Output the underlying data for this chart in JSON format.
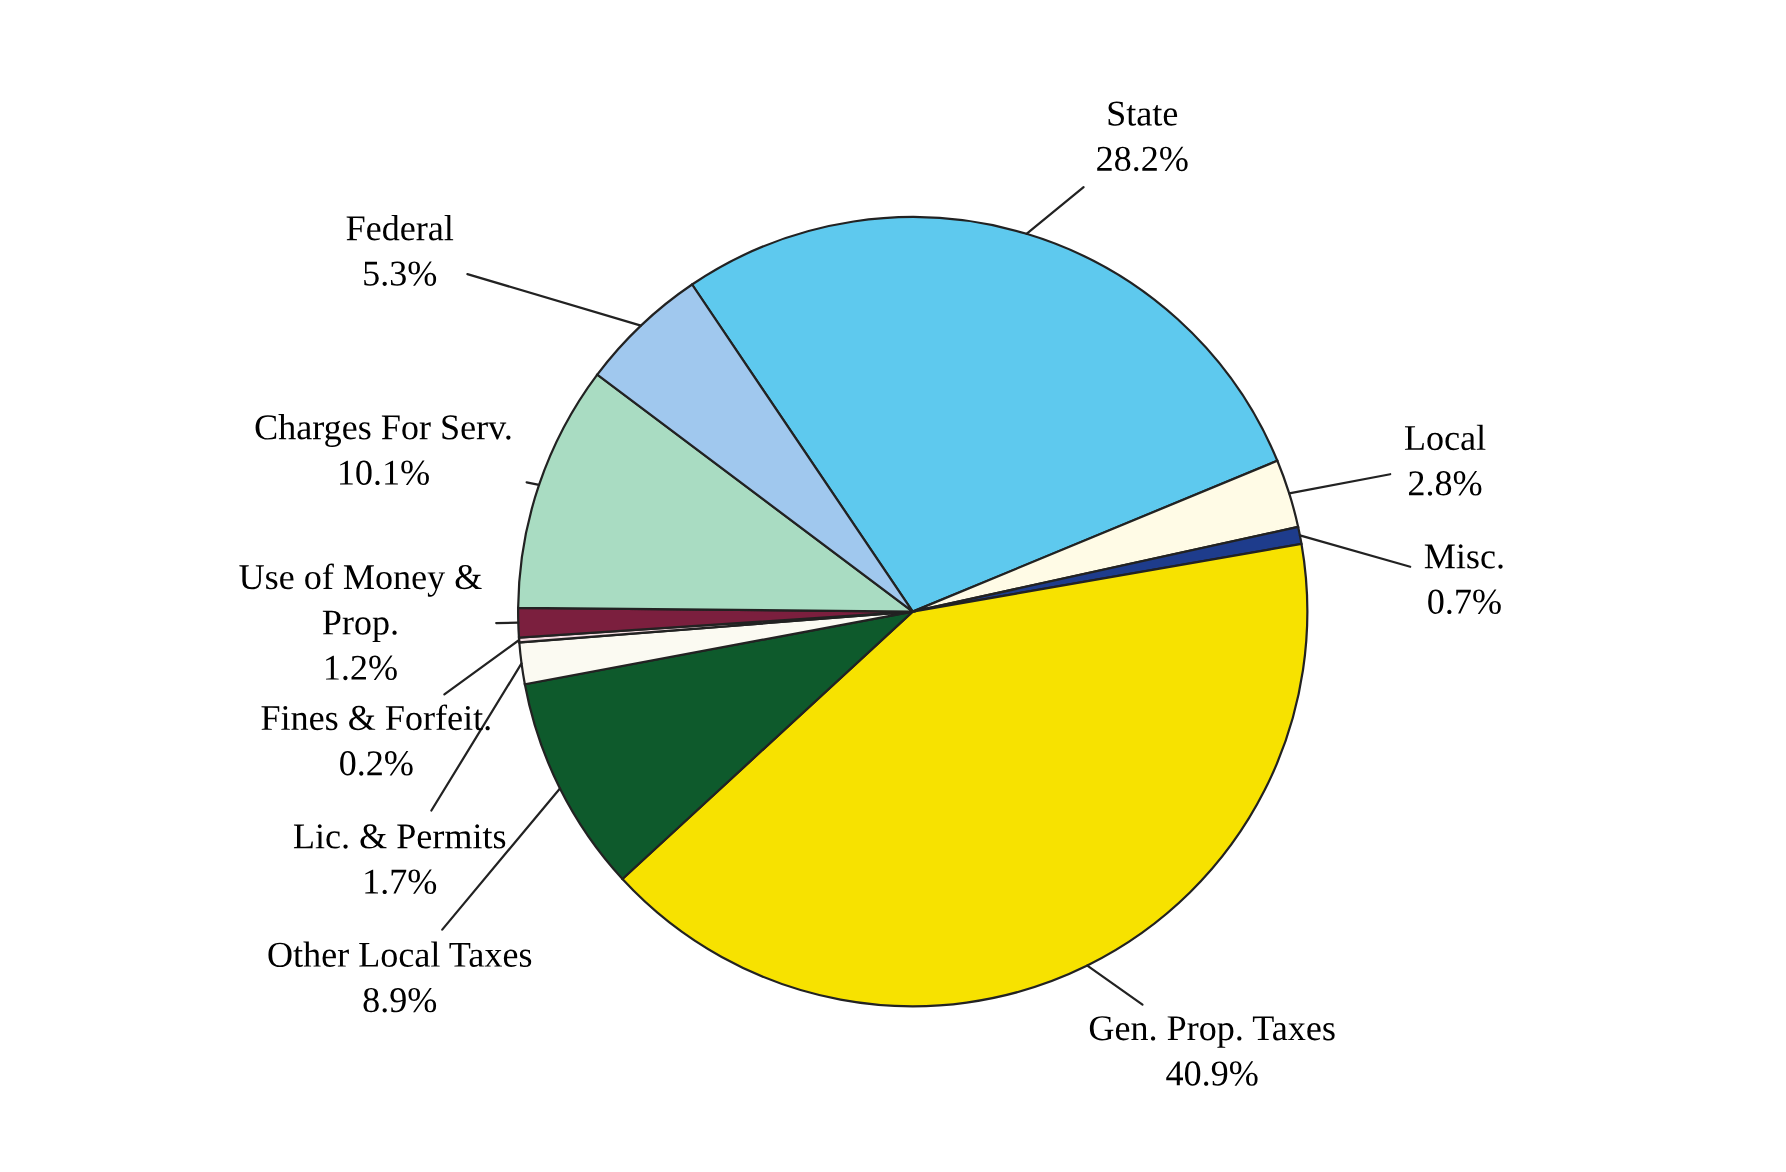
{
  "chart_data": {
    "type": "pie",
    "categories": [
      "State",
      "Local",
      "Misc.",
      "Gen. Prop. Taxes",
      "Other Local Taxes",
      "Lic. & Permits",
      "Fines & Forfeit.",
      "Use of Money &\nProp.",
      "Charges For Serv.",
      "Federal"
    ],
    "values": [
      28.2,
      2.8,
      0.7,
      40.9,
      8.9,
      1.7,
      0.2,
      1.2,
      10.1,
      5.3
    ],
    "value_labels": [
      "28.2%",
      "2.8%",
      "0.7%",
      "40.9%",
      "8.9%",
      "1.7%",
      "0.2%",
      "1.2%",
      "10.1%",
      "5.3%"
    ],
    "colors": [
      "#5ec9ee",
      "#fffbe6",
      "#1e3c8c",
      "#f7e200",
      "#0e5a2c",
      "#fbfaf2",
      "#f6dde2",
      "#7b1f3e",
      "#a9dcc2",
      "#a0c8ee"
    ],
    "legend": false
  }
}
